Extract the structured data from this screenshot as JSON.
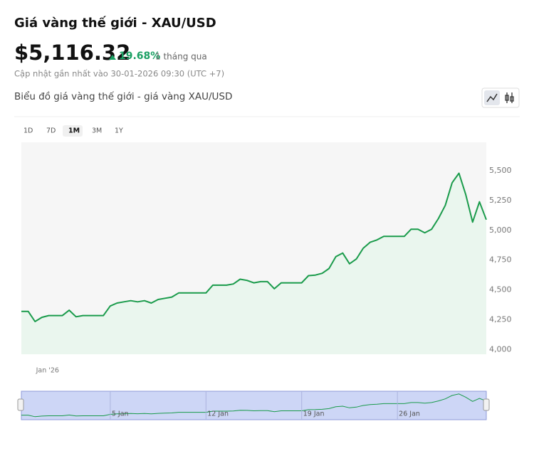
{
  "header": {
    "title": "Giá vàng thế giới - XAU/USD",
    "price": "$5,116.32",
    "change": "19.68%",
    "period": "1 tháng qua",
    "updated": "Cập nhật gần nhất vào 30-01-2026 09:30 (UTC +7)",
    "chart_heading": "Biểu đồ giá vàng thế giới - giá vàng XAU/USD"
  },
  "range_buttons": [
    "1D",
    "7D",
    "1M",
    "3M",
    "1Y"
  ],
  "selected_range": "1M",
  "chart_data": {
    "type": "line",
    "color": "#1a9b4b",
    "fill": "#eaf6ee",
    "values": [
      4320,
      4320,
      4235,
      4270,
      4285,
      4285,
      4285,
      4330,
      4275,
      4285,
      4285,
      4285,
      4285,
      4365,
      4390,
      4400,
      4410,
      4400,
      4410,
      4390,
      4420,
      4430,
      4440,
      4475,
      4475,
      4475,
      4475,
      4475,
      4540,
      4540,
      4540,
      4550,
      4590,
      4580,
      4560,
      4570,
      4570,
      4510,
      4560,
      4560,
      4560,
      4560,
      4620,
      4625,
      4640,
      4680,
      4780,
      4810,
      4720,
      4760,
      4850,
      4900,
      4920,
      4950,
      4950,
      4950,
      4950,
      5010,
      5010,
      4980,
      5010,
      5100,
      5210,
      5400,
      5480,
      5300,
      5070,
      5240,
      5090
    ],
    "categories": [
      null,
      null,
      null,
      "Jan '26",
      null,
      null,
      null,
      null,
      null,
      null,
      null,
      null,
      null,
      null,
      null,
      null,
      null,
      null,
      null,
      null,
      null,
      null,
      null,
      null,
      null,
      null,
      null,
      null,
      null,
      null,
      null,
      null,
      null,
      null,
      null,
      null,
      null,
      null,
      null,
      null,
      null,
      null,
      null,
      null,
      null,
      null,
      null,
      null,
      null,
      null,
      null,
      null,
      null,
      null,
      null,
      null,
      null,
      null,
      null,
      null,
      null,
      null,
      null,
      null,
      null,
      null,
      null,
      null,
      null
    ],
    "navigator_categories": [
      null,
      null,
      null,
      null,
      null,
      null,
      null,
      null,
      null,
      null,
      null,
      null,
      null,
      "5 Jan",
      null,
      null,
      null,
      null,
      null,
      null,
      null,
      null,
      null,
      null,
      null,
      null,
      null,
      "12 Jan",
      null,
      null,
      null,
      null,
      null,
      null,
      null,
      null,
      null,
      null,
      null,
      null,
      null,
      "19 Jan",
      null,
      null,
      null,
      null,
      null,
      null,
      null,
      null,
      null,
      null,
      null,
      null,
      null,
      "26 Jan",
      null,
      null,
      null,
      null,
      null,
      null,
      null,
      null,
      null,
      null,
      null,
      null,
      null
    ],
    "ylim": [
      3960,
      5740
    ],
    "yticks": [
      {
        "value": 4000,
        "label": "4,000"
      },
      {
        "value": 4250,
        "label": "4,250"
      },
      {
        "value": 4500,
        "label": "4,500"
      },
      {
        "value": 4750,
        "label": "4,750"
      },
      {
        "value": 5000,
        "label": "5,000"
      },
      {
        "value": 5250,
        "label": "5,250"
      },
      {
        "value": 5500,
        "label": "5,500"
      }
    ],
    "navigator_ylim": [
      4150,
      5550
    ]
  }
}
